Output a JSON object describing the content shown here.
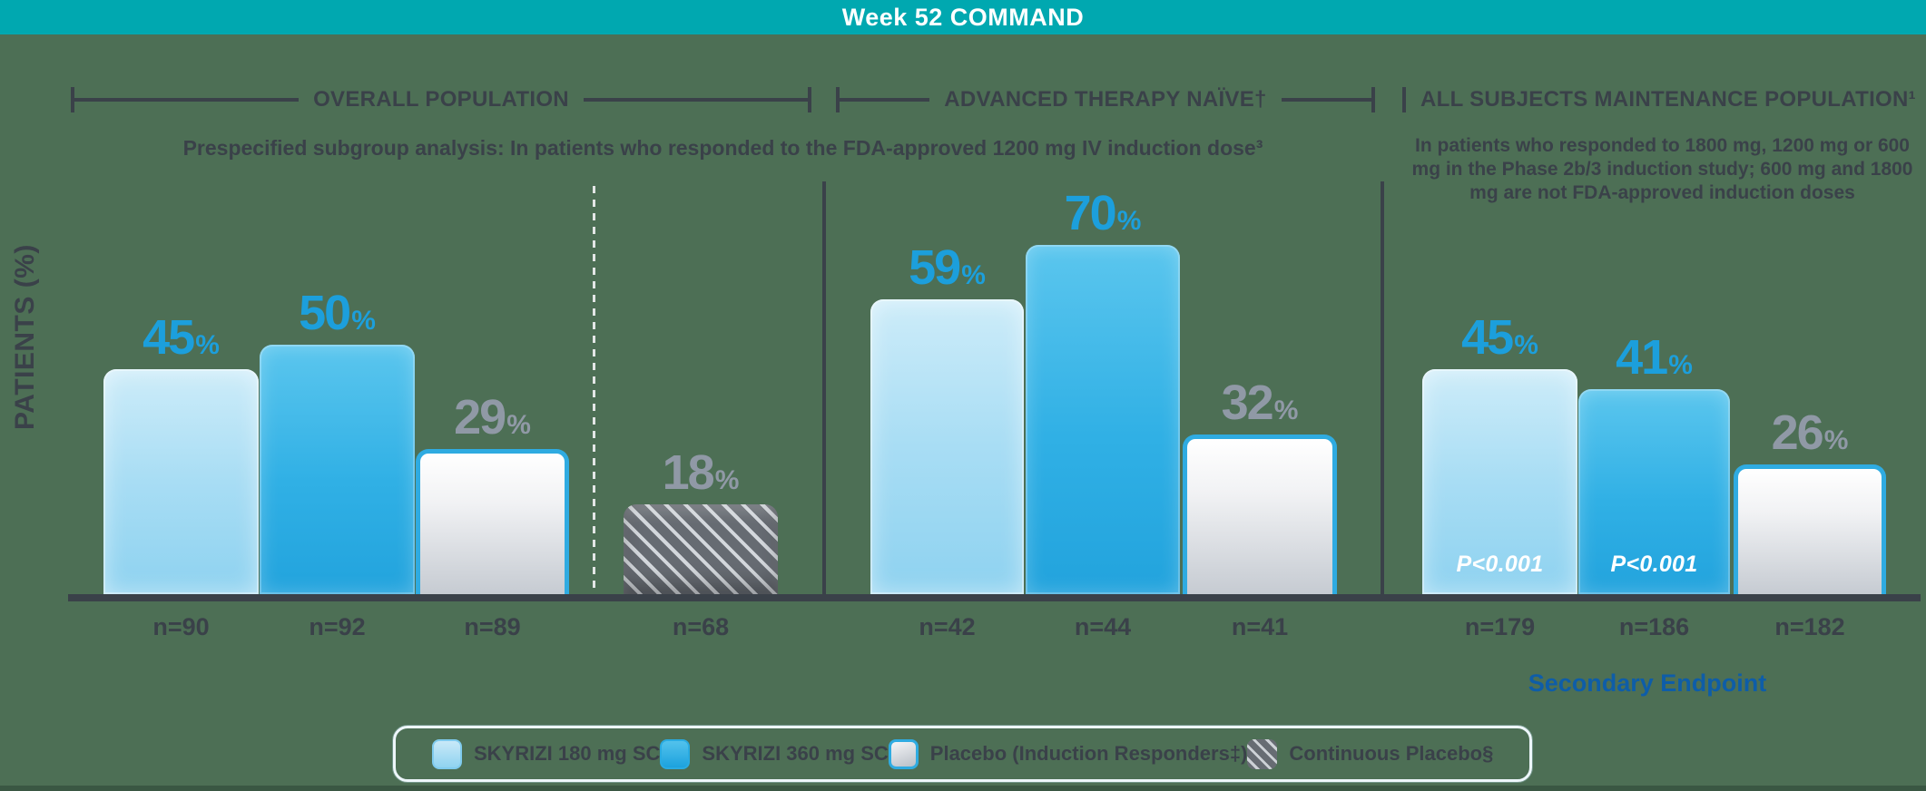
{
  "header": {
    "title": "Week 52 COMMAND"
  },
  "y_axis": {
    "label": "PATIENTS (%)"
  },
  "sections": [
    {
      "title": "OVERALL POPULATION"
    },
    {
      "title": "ADVANCED THERAPY NAÏVE†"
    },
    {
      "title": "ALL SUBJECTS MAINTENANCE POPULATION¹"
    }
  ],
  "subtitle_left": "Prespecified subgroup analysis: In patients who responded to the FDA-approved 1200 mg IV induction dose³",
  "subtitle_right": "In patients who responded to 1800 mg, 1200 mg or 600 mg in the Phase 2b/3 induction study; 600 mg and 1800 mg are not FDA-approved induction doses",
  "secondary_endpoint_label": "Secondary Endpoint",
  "legend": {
    "items": [
      {
        "label": "SKYRIZI 180 mg SC",
        "swatch": "skyrizi-180"
      },
      {
        "label": "SKYRIZI 360 mg SC",
        "swatch": "skyrizi-360"
      },
      {
        "label": "Placebo (Induction Responders‡)",
        "swatch": "placebo-induction-responders"
      },
      {
        "label": "Continuous Placebo§",
        "swatch": "continuous-placebo"
      }
    ]
  },
  "chart_data": {
    "type": "bar",
    "title": "Week 52 COMMAND",
    "ylabel": "PATIENTS (%)",
    "unit": "%",
    "ylim": [
      0,
      100
    ],
    "grid": false,
    "legend_position": "bottom",
    "series_names": [
      "SKYRIZI 180 mg SC",
      "SKYRIZI 360 mg SC",
      "Placebo (Induction Responders‡)",
      "Continuous Placebo§"
    ],
    "groups": [
      {
        "section": "OVERALL POPULATION",
        "bars": [
          {
            "series": "SKYRIZI 180 mg SC",
            "pct": 45,
            "n": "n=90"
          },
          {
            "series": "SKYRIZI 360 mg SC",
            "pct": 50,
            "n": "n=92"
          },
          {
            "series": "Placebo (Induction Responders‡)",
            "pct": 29,
            "n": "n=89"
          },
          {
            "series": "Continuous Placebo§",
            "pct": 18,
            "n": "n=68"
          }
        ]
      },
      {
        "section": "ADVANCED THERAPY NAÏVE†",
        "bars": [
          {
            "series": "SKYRIZI 180 mg SC",
            "pct": 59,
            "n": "n=42"
          },
          {
            "series": "SKYRIZI 360 mg SC",
            "pct": 70,
            "n": "n=44"
          },
          {
            "series": "Placebo (Induction Responders‡)",
            "pct": 32,
            "n": "n=41"
          }
        ]
      },
      {
        "section": "ALL SUBJECTS MAINTENANCE POPULATION¹",
        "bars": [
          {
            "series": "SKYRIZI 180 mg SC",
            "pct": 45,
            "n": "n=179",
            "p_value": "P<0.001"
          },
          {
            "series": "SKYRIZI 360 mg SC",
            "pct": 41,
            "n": "n=186",
            "p_value": "P<0.001"
          },
          {
            "series": "Placebo (Induction Responders‡)",
            "pct": 26,
            "n": "n=182"
          }
        ]
      }
    ],
    "annotations": {
      "secondary_endpoint": "Secondary Endpoint"
    }
  },
  "colors": {
    "header_teal": "#00A8B0",
    "background_green": "#4D6F55",
    "dark_text": "#3A4149",
    "skyrizi_label_blue": "#1C9FDC",
    "placebo_label_gray": "#9099A6",
    "placebo_border_blue": "#2FABE1",
    "secondary_endpoint_blue": "#0E5DA8"
  }
}
